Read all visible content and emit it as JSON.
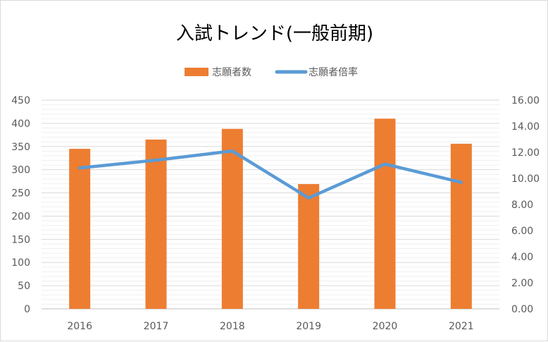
{
  "chart_data": {
    "type": "bar",
    "title": "入試トレンド(一般前期)",
    "categories": [
      "2016",
      "2017",
      "2018",
      "2019",
      "2020",
      "2021"
    ],
    "series": [
      {
        "name": "志願者数",
        "type": "bar",
        "axis": "left",
        "color": "#ED7D31",
        "values": [
          345,
          365,
          388,
          269,
          410,
          356
        ]
      },
      {
        "name": "志願者倍率",
        "type": "line",
        "axis": "right",
        "color": "#5B9BD5",
        "values": [
          10.8,
          11.4,
          12.1,
          8.5,
          11.1,
          9.7
        ]
      }
    ],
    "y_left": {
      "ylim": [
        0,
        450
      ],
      "ticks": [
        "0",
        "50",
        "100",
        "150",
        "200",
        "250",
        "300",
        "350",
        "400",
        "450"
      ]
    },
    "y_right": {
      "ylim": [
        0,
        16
      ],
      "ticks": [
        "0.00",
        "2.00",
        "4.00",
        "6.00",
        "8.00",
        "10.00",
        "12.00",
        "14.00",
        "16.00"
      ]
    },
    "grid": true,
    "legend_position": "top-center"
  }
}
